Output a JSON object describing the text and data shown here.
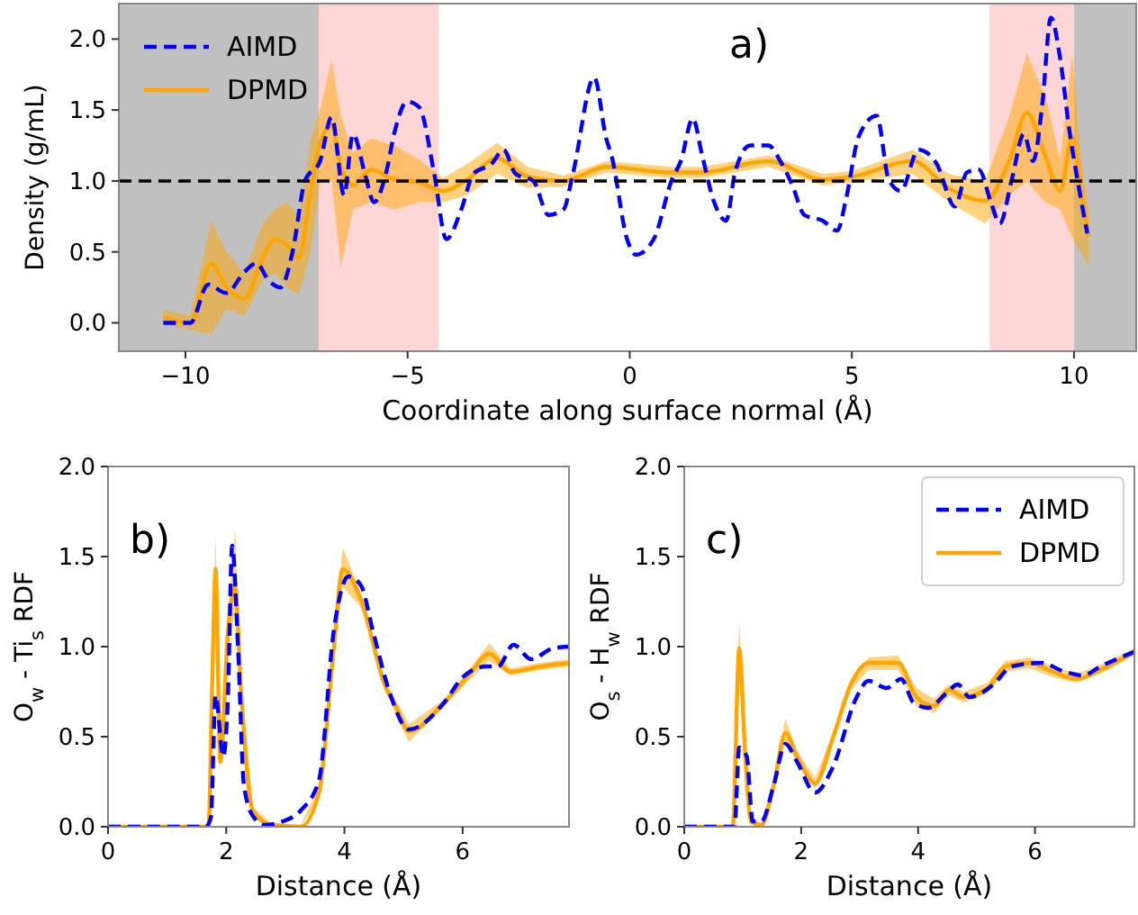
{
  "chart_data": [
    {
      "type": "line",
      "annotations": [
        "a)"
      ],
      "xlabel": "Coordinate along surface normal (Å)",
      "ylabel": "Density (g/mL)",
      "xlim": [
        -11.5,
        11.4
      ],
      "ylim": [
        -0.2,
        2.25
      ],
      "xticks": [
        {
          "value": -10,
          "label": "−10"
        },
        {
          "value": -5,
          "label": "−5"
        },
        0,
        5,
        10
      ],
      "yticks": [
        {
          "value": 0,
          "label": "0.0"
        },
        {
          "value": 0.5,
          "label": "0.5"
        },
        {
          "value": 1,
          "label": "1.0"
        },
        {
          "value": 1.5,
          "label": "1.5"
        },
        {
          "value": 2,
          "label": "2.0"
        }
      ],
      "legend": "top left",
      "bands": [
        {
          "axis": "x",
          "from": -11.5,
          "to": -7,
          "color": "#c0c0c0"
        },
        {
          "axis": "x",
          "from": -7,
          "to": -4.3,
          "color": "#ffd6d6"
        },
        {
          "axis": "x",
          "from": 8.1,
          "to": 10,
          "color": "#ffd6d6"
        },
        {
          "axis": "x",
          "from": 10,
          "to": 11.4,
          "color": "#c0c0c0"
        }
      ],
      "ref_lines": [
        {
          "axis": "y",
          "value": 1,
          "color": "#000000",
          "line_style": "dashed"
        }
      ],
      "series": [
        {
          "name": "AIMD",
          "color": "#0000ff",
          "line_style": "dashed",
          "x": [
            -10.5,
            -9.89,
            -9.49,
            -9.08,
            -8.67,
            -8.4,
            -8.13,
            -7.86,
            -7.59,
            -7.31,
            -6.97,
            -6.71,
            -6.43,
            -6.23,
            -5.96,
            -5.76,
            -5.49,
            -5.29,
            -5.01,
            -4.74,
            -4.4,
            -4.13,
            -3.79,
            -3.52,
            -3.11,
            -2.84,
            -2.57,
            -2.17,
            -1.83,
            -1.49,
            -1.28,
            -0.8,
            -0.53,
            -0.41,
            -0.06,
            0.14,
            0.54,
            0.95,
            1.15,
            1.42,
            1.63,
            1.9,
            2.17,
            2.37,
            2.71,
            3.12,
            3.39,
            3.66,
            3.93,
            4.34,
            4.67,
            4.88,
            5.15,
            5.56,
            5.83,
            6.1,
            6.5,
            6.91,
            7.32,
            7.59,
            7.86,
            8.13,
            8.33,
            8.6,
            8.87,
            9.08,
            9.28,
            9.48,
            9.69,
            9.89,
            10.1,
            10.3
          ],
          "values": [
            0,
            0,
            0.27,
            0.21,
            0.36,
            0.42,
            0.3,
            0.25,
            0.5,
            1.0,
            1.14,
            1.45,
            0.9,
            1.33,
            1.05,
            0.85,
            1.05,
            1.35,
            1.56,
            1.52,
            1.05,
            0.59,
            0.8,
            1.05,
            1.12,
            1.22,
            1.05,
            1.0,
            0.76,
            0.8,
            1.05,
            1.73,
            1.3,
            1.18,
            0.59,
            0.48,
            0.59,
            1.01,
            1.14,
            1.44,
            1.18,
            0.85,
            0.72,
            1.06,
            1.25,
            1.25,
            1.14,
            0.97,
            0.76,
            0.72,
            0.65,
            0.89,
            1.31,
            1.46,
            1.01,
            0.93,
            1.22,
            1.12,
            0.82,
            1.06,
            1.08,
            0.85,
            0.7,
            1.01,
            1.33,
            1.14,
            1.52,
            2.15,
            1.86,
            1.37,
            0.97,
            0.63
          ]
        },
        {
          "name": "DPMD",
          "color": "#ffa500",
          "line_style": "solid",
          "x": [
            -10.5,
            -9.89,
            -9.42,
            -9.08,
            -8.67,
            -8.26,
            -7.99,
            -7.72,
            -7.45,
            -7.18,
            -6.97,
            -6.71,
            -6.5,
            -6.23,
            -5.83,
            -5.29,
            -4.74,
            -4.2,
            -3.66,
            -2.98,
            -2.3,
            -1.49,
            -0.53,
            0.95,
            1.63,
            3.12,
            4.34,
            5.01,
            6.37,
            7.18,
            8.0,
            8.54,
            8.94,
            9.35,
            9.69,
            9.96,
            10.16,
            10.33
          ],
          "values": [
            0.04,
            0,
            0.42,
            0.25,
            0.17,
            0.46,
            0.59,
            0.55,
            0.46,
            0.93,
            1.27,
            1.39,
            1.1,
            0.97,
            1.08,
            1.01,
            0.99,
            0.93,
            1.01,
            1.16,
            1.03,
            1.0,
            1.1,
            1.06,
            1.06,
            1.14,
            1.01,
            1.03,
            1.14,
            0.95,
            0.86,
            1.14,
            1.48,
            1.18,
            0.93,
            1.31,
            0.93,
            0.61
          ],
          "lower": [
            -0.01,
            -0.05,
            -0.08,
            0.1,
            0.05,
            0.3,
            0.35,
            0.25,
            0.2,
            0.5,
            1.0,
            1.0,
            0.4,
            0.8,
            0.85,
            0.8,
            0.85,
            0.85,
            0.9,
            1.05,
            0.95,
            0.96,
            1.06,
            1.02,
            1.02,
            1.1,
            0.97,
            0.99,
            1.05,
            0.85,
            0.7,
            0.9,
            1.0,
            0.85,
            0.8,
            0.6,
            0.5,
            0.4
          ],
          "upper": [
            0.09,
            0.05,
            0.72,
            0.5,
            0.35,
            0.7,
            0.8,
            0.85,
            0.75,
            1.3,
            1.5,
            1.85,
            1.45,
            1.2,
            1.3,
            1.25,
            1.15,
            1.02,
            1.12,
            1.27,
            1.1,
            1.04,
            1.14,
            1.1,
            1.1,
            1.18,
            1.05,
            1.07,
            1.22,
            1.05,
            1.0,
            1.45,
            1.9,
            1.6,
            1.15,
            1.9,
            1.15,
            0.8
          ]
        }
      ]
    },
    {
      "type": "line",
      "annotations": [
        "b)"
      ],
      "xlabel": "Distance (Å)",
      "ylabel": "O$_{w}$ - Ti$_{s}$ RDF",
      "xlim": [
        0,
        7.8
      ],
      "ylim": [
        0,
        2
      ],
      "xticks": [
        0,
        2,
        4,
        6
      ],
      "yticks": [
        {
          "value": 0,
          "label": "0.0"
        },
        {
          "value": 0.5,
          "label": "0.5"
        },
        {
          "value": 1,
          "label": "1.0"
        },
        {
          "value": 1.5,
          "label": "1.5"
        },
        {
          "value": 2,
          "label": "2.0"
        }
      ],
      "series": [
        {
          "color": "#0000ff",
          "line_style": "dashed",
          "x": [
            0,
            1.65,
            1.74,
            1.82,
            1.95,
            2.03,
            2.1,
            2.2,
            2.3,
            2.45,
            2.65,
            2.96,
            3.26,
            3.57,
            3.82,
            4.07,
            4.28,
            4.48,
            4.78,
            5.09,
            5.69,
            6.0,
            6.4,
            6.6,
            6.86,
            7.16,
            7.52,
            7.8
          ],
          "values": [
            0,
            0,
            0.05,
            0.73,
            0.39,
            0.73,
            1.56,
            0.99,
            0.23,
            0.06,
            0.01,
            0.03,
            0.09,
            0.26,
            1.09,
            1.39,
            1.34,
            1.09,
            0.73,
            0.54,
            0.69,
            0.83,
            0.89,
            0.89,
            1.01,
            0.93,
            0.99,
            1.0
          ]
        },
        {
          "color": "#ffa500",
          "line_style": "solid",
          "x": [
            0,
            1.7,
            1.76,
            1.82,
            1.9,
            2.03,
            2.15,
            2.25,
            2.45,
            2.76,
            3.26,
            3.57,
            3.82,
            3.97,
            4.28,
            4.68,
            4.88,
            5.09,
            5.69,
            6.1,
            6.45,
            6.81,
            7.32,
            7.8
          ],
          "values": [
            0,
            0,
            0.76,
            1.43,
            0.36,
            1.09,
            1.33,
            0.76,
            0.09,
            0.01,
            0,
            0.19,
            0.99,
            1.43,
            1.26,
            0.79,
            0.66,
            0.53,
            0.69,
            0.84,
            0.96,
            0.86,
            0.89,
            0.91
          ],
          "lower": [
            0,
            0,
            0.7,
            1.2,
            0.32,
            1.0,
            1.2,
            0.7,
            0.07,
            0,
            0,
            0.16,
            0.95,
            1.33,
            1.22,
            0.76,
            0.62,
            0.47,
            0.67,
            0.81,
            0.92,
            0.84,
            0.87,
            0.89
          ],
          "upper": [
            0,
            0,
            0.82,
            1.63,
            0.4,
            1.18,
            1.65,
            0.82,
            0.11,
            0.02,
            0.01,
            0.22,
            1.03,
            1.55,
            1.3,
            0.82,
            0.7,
            0.57,
            0.71,
            0.87,
            1.02,
            0.88,
            0.91,
            0.93
          ]
        }
      ]
    },
    {
      "type": "line",
      "annotations": [
        "c)"
      ],
      "xlabel": "Distance (Å)",
      "ylabel": "O$_{s}$ - H$_{w}$ RDF",
      "xlim": [
        0,
        7.7
      ],
      "ylim": [
        0,
        2
      ],
      "xticks": [
        0,
        2,
        4,
        6
      ],
      "yticks": [
        {
          "value": 0,
          "label": "0.0"
        },
        {
          "value": 0.5,
          "label": "0.5"
        },
        {
          "value": 1,
          "label": "1.0"
        },
        {
          "value": 1.5,
          "label": "1.5"
        },
        {
          "value": 2,
          "label": "2.0"
        }
      ],
      "legend": "top right",
      "series": [
        {
          "name": "AIMD",
          "color": "#0000ff",
          "line_style": "dashed",
          "x": [
            0,
            0.86,
            0.94,
            1.07,
            1.17,
            1.32,
            1.53,
            1.73,
            1.93,
            2.24,
            2.54,
            2.95,
            3.15,
            3.46,
            3.71,
            3.92,
            4.17,
            4.48,
            4.68,
            4.88,
            5.29,
            5.6,
            6.1,
            6.51,
            6.82,
            7.12,
            7.69
          ],
          "values": [
            0,
            0,
            0.44,
            0.39,
            0.03,
            0.03,
            0.23,
            0.46,
            0.36,
            0.19,
            0.33,
            0.72,
            0.81,
            0.77,
            0.82,
            0.69,
            0.66,
            0.74,
            0.79,
            0.72,
            0.79,
            0.89,
            0.91,
            0.86,
            0.84,
            0.89,
            0.97
          ]
        },
        {
          "name": "DPMD",
          "color": "#ffa500",
          "line_style": "solid",
          "x": [
            0,
            0.83,
            0.94,
            1.04,
            1.14,
            1.32,
            1.53,
            1.73,
            1.93,
            2.24,
            2.54,
            2.85,
            3.15,
            3.66,
            3.97,
            4.27,
            4.53,
            4.78,
            5.19,
            5.49,
            5.9,
            6.31,
            6.71,
            7.12,
            7.69
          ],
          "values": [
            0,
            0,
            0.99,
            0.42,
            0.03,
            0.01,
            0.23,
            0.52,
            0.39,
            0.24,
            0.49,
            0.79,
            0.91,
            0.91,
            0.72,
            0.67,
            0.76,
            0.72,
            0.77,
            0.89,
            0.91,
            0.86,
            0.82,
            0.87,
            0.97
          ],
          "lower": [
            0,
            0,
            0.85,
            0.38,
            0.01,
            0,
            0.2,
            0.47,
            0.36,
            0.21,
            0.46,
            0.76,
            0.87,
            0.87,
            0.67,
            0.63,
            0.73,
            0.69,
            0.74,
            0.86,
            0.88,
            0.83,
            0.8,
            0.85,
            0.95
          ],
          "upper": [
            0,
            0,
            1.15,
            0.46,
            0.05,
            0.02,
            0.26,
            0.6,
            0.42,
            0.27,
            0.52,
            0.82,
            0.94,
            0.95,
            0.77,
            0.71,
            0.79,
            0.75,
            0.8,
            0.92,
            0.94,
            0.89,
            0.85,
            0.9,
            0.99
          ]
        }
      ]
    }
  ]
}
